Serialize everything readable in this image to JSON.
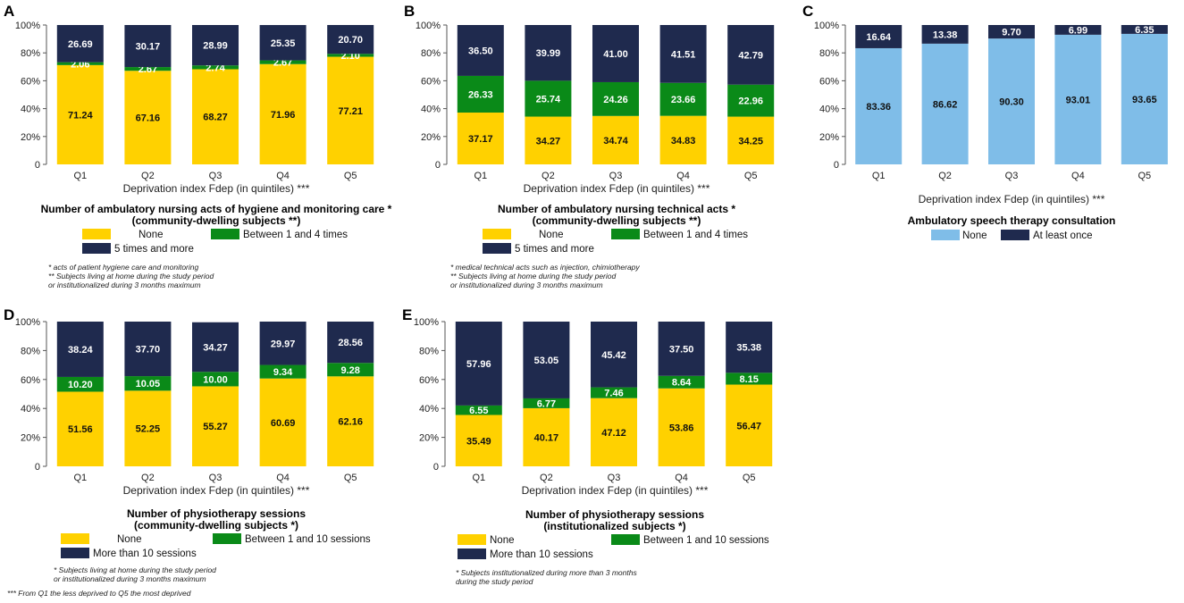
{
  "colors": {
    "yellow": "#FFD100",
    "green": "#0A8A18",
    "navy": "#1F2A4E",
    "lightblue": "#7FBDE8"
  },
  "chart_data": [
    {
      "panel": "A",
      "type": "bar",
      "stacked": true,
      "categories": [
        "Q1",
        "Q2",
        "Q3",
        "Q4",
        "Q5"
      ],
      "yticks": [
        "0",
        "20%",
        "40%",
        "60%",
        "80%",
        "100%"
      ],
      "xlabel": "Deprivation index Fdep (in quintiles) ***",
      "ylim": [
        0,
        100
      ],
      "title_line1": "Number of ambulatory nursing acts of hygiene and monitoring care *",
      "title_line2": "(community-dwelling subjects **)",
      "series": [
        {
          "name": "None",
          "color": "#FFD100",
          "label_color": "#111",
          "values": [
            71.24,
            67.16,
            68.27,
            71.96,
            77.21
          ],
          "labels": [
            "71.24",
            "67.16",
            "68.27",
            "71.96",
            "77.21"
          ]
        },
        {
          "name": "Between 1 and 4 times",
          "color": "#0A8A18",
          "label_color": "#ffffff",
          "values": [
            2.06,
            2.67,
            2.74,
            2.67,
            2.1
          ],
          "labels": [
            "2.06",
            "2.67",
            "2.74",
            "2.67",
            "2.10"
          ]
        },
        {
          "name": "5 times and more",
          "color": "#1F2A4E",
          "label_color": "#ffffff",
          "values": [
            26.69,
            30.17,
            28.99,
            25.35,
            20.7
          ],
          "labels": [
            "26.69",
            "30.17",
            "28.99",
            "25.35",
            "20.70"
          ]
        }
      ],
      "notes": [
        "* acts of patient hygiene care and monitoring",
        "** Subjects living at home during the study period",
        "or institutionalized during 3 months maximum"
      ]
    },
    {
      "panel": "B",
      "type": "bar",
      "stacked": true,
      "categories": [
        "Q1",
        "Q2",
        "Q3",
        "Q4",
        "Q5"
      ],
      "yticks": [
        "0",
        "20%",
        "40%",
        "60%",
        "80%",
        "100%"
      ],
      "xlabel": "Deprivation index Fdep (in quintiles) ***",
      "ylim": [
        0,
        100
      ],
      "title_line1": "Number of ambulatory nursing technical acts *",
      "title_line2": "(community-dwelling subjects **)",
      "series": [
        {
          "name": "None",
          "color": "#FFD100",
          "label_color": "#111",
          "values": [
            37.17,
            34.27,
            34.74,
            34.83,
            34.25
          ],
          "labels": [
            "37.17",
            "34.27",
            "34.74",
            "34.83",
            "34.25"
          ]
        },
        {
          "name": "Between 1 and 4 times",
          "color": "#0A8A18",
          "label_color": "#ffffff",
          "values": [
            26.33,
            25.74,
            24.26,
            23.66,
            22.96
          ],
          "labels": [
            "26.33",
            "25.74",
            "24.26",
            "23.66",
            "22.96"
          ]
        },
        {
          "name": "5 times and more",
          "color": "#1F2A4E",
          "label_color": "#ffffff",
          "values": [
            36.5,
            39.99,
            41.0,
            41.51,
            42.79
          ],
          "labels": [
            "36.50",
            "39.99",
            "41.00",
            "41.51",
            "42.79"
          ]
        }
      ],
      "notes": [
        "* medical technical acts such as injection, chimiotherapy",
        "** Subjects living at home during the study period",
        "or institutionalized during 3 months maximum"
      ]
    },
    {
      "panel": "C",
      "type": "bar",
      "stacked": true,
      "categories": [
        "Q1",
        "Q2",
        "Q3",
        "Q4",
        "Q5"
      ],
      "yticks": [
        "0",
        "20%",
        "40%",
        "60%",
        "80%",
        "100%"
      ],
      "xlabel": "Deprivation index Fdep (in quintiles) ***",
      "ylim": [
        0,
        100
      ],
      "title_line1": "Ambulatory speech therapy consultation",
      "title_line2": "",
      "series": [
        {
          "name": "None",
          "color": "#7FBDE8",
          "label_color": "#111",
          "values": [
            83.36,
            86.62,
            90.3,
            93.01,
            93.65
          ],
          "labels": [
            "83.36",
            "86.62",
            "90.30",
            "93.01",
            "93.65"
          ]
        },
        {
          "name": "At least once",
          "color": "#1F2A4E",
          "label_color": "#ffffff",
          "values": [
            16.64,
            13.38,
            9.7,
            6.99,
            6.35
          ],
          "labels": [
            "16.64",
            "13.38",
            "9.70",
            "6.99",
            "6.35"
          ]
        }
      ],
      "notes": []
    },
    {
      "panel": "D",
      "type": "bar",
      "stacked": true,
      "categories": [
        "Q1",
        "Q2",
        "Q3",
        "Q4",
        "Q5"
      ],
      "yticks": [
        "0",
        "20%",
        "40%",
        "60%",
        "80%",
        "100%"
      ],
      "xlabel": "Deprivation index Fdep (in quintiles) ***",
      "ylim": [
        0,
        100
      ],
      "title_line1": "Number of physiotherapy sessions",
      "title_line2": "(community-dwelling subjects *)",
      "series": [
        {
          "name": "None",
          "color": "#FFD100",
          "label_color": "#111",
          "values": [
            51.56,
            52.25,
            55.27,
            60.69,
            62.16
          ],
          "labels": [
            "51.56",
            "52.25",
            "55.27",
            "60.69",
            "62.16"
          ]
        },
        {
          "name": "Between 1 and 10 sessions",
          "color": "#0A8A18",
          "label_color": "#ffffff",
          "values": [
            10.2,
            10.05,
            10.0,
            9.34,
            9.28
          ],
          "labels": [
            "10.20",
            "10.05",
            "10.00",
            "9.34",
            "9.28"
          ]
        },
        {
          "name": "More than 10 sessions",
          "color": "#1F2A4E",
          "label_color": "#ffffff",
          "values": [
            38.24,
            37.7,
            34.27,
            29.97,
            28.56
          ],
          "labels": [
            "38.24",
            "37.70",
            "34.27",
            "29.97",
            "28.56"
          ]
        }
      ],
      "notes": [
        "* Subjects living at home during the study period",
        "or institutionalized during 3 months maximum"
      ]
    },
    {
      "panel": "E",
      "type": "bar",
      "stacked": true,
      "categories": [
        "Q1",
        "Q2",
        "Q3",
        "Q4",
        "Q5"
      ],
      "yticks": [
        "0",
        "20%",
        "40%",
        "60%",
        "80%",
        "100%"
      ],
      "xlabel": "Deprivation index Fdep (in quintiles) ***",
      "ylim": [
        0,
        100
      ],
      "title_line1": "Number of physiotherapy sessions",
      "title_line2": "(institutionalized subjects *)",
      "series": [
        {
          "name": "None",
          "color": "#FFD100",
          "label_color": "#111",
          "values": [
            35.49,
            40.17,
            47.12,
            53.86,
            56.47
          ],
          "labels": [
            "35.49",
            "40.17",
            "47.12",
            "53.86",
            "56.47"
          ]
        },
        {
          "name": "Between 1 and 10 sessions",
          "color": "#0A8A18",
          "label_color": "#ffffff",
          "values": [
            6.55,
            6.77,
            7.46,
            8.64,
            8.15
          ],
          "labels": [
            "6.55",
            "6.77",
            "7.46",
            "8.64",
            "8.15"
          ]
        },
        {
          "name": "More than 10 sessions",
          "color": "#1F2A4E",
          "label_color": "#ffffff",
          "values": [
            57.96,
            53.05,
            45.42,
            37.5,
            35.38
          ],
          "labels": [
            "57.96",
            "53.05",
            "45.42",
            "37.50",
            "35.38"
          ]
        }
      ],
      "notes": [
        "* Subjects institutionalized during more than 3 months",
        "during the study period"
      ]
    }
  ],
  "footnote": "*** From Q1 the less deprived to Q5 the most deprived"
}
